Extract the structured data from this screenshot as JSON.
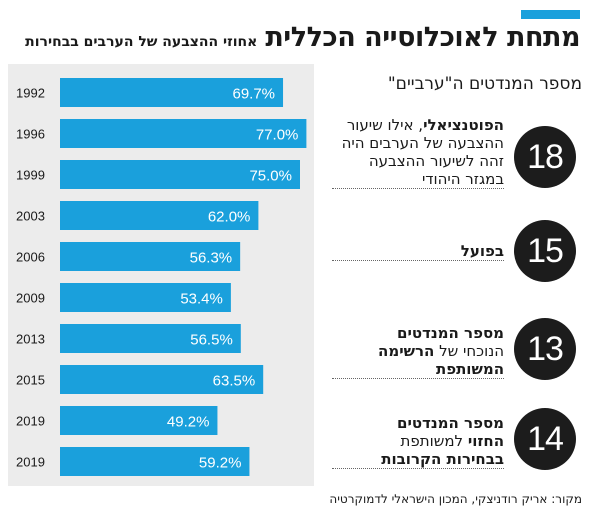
{
  "header": {
    "title": "מתחת לאוכלוסייה הכללית",
    "subtitle": "אחוזי ההצבעה של הערבים בבחירות",
    "accent_color": "#1aa0dc"
  },
  "chart_data": {
    "type": "bar",
    "orientation": "horizontal",
    "categories": [
      "1992",
      "1996",
      "1999",
      "2003",
      "2006",
      "2009",
      "2013",
      "2015",
      "2019",
      "2019"
    ],
    "values": [
      69.7,
      77.0,
      75.0,
      62.0,
      56.3,
      53.4,
      56.5,
      63.5,
      49.2,
      59.2
    ],
    "value_labels": [
      "69.7%",
      "77.0%",
      "75.0%",
      "62.0%",
      "56.3%",
      "53.4%",
      "56.5%",
      "63.5%",
      "49.2%",
      "59.2%"
    ],
    "title": "אחוזי ההצבעה של הערבים בבחירות",
    "xlim": [
      0,
      100
    ],
    "bar_color": "#1aa0dc",
    "background_color": "#ececec",
    "grid": false,
    "legend": "none"
  },
  "seats": {
    "heading": "מספר המנדטים ה\"ערביים\"",
    "items": [
      {
        "number": "18",
        "bold": "הפוטנציאלי",
        "rest": ", אילו שיעור ההצבעה של הערבים היה זהה לשיעור ההצבעה במגזר היהודי"
      },
      {
        "number": "15",
        "bold": "בפועל",
        "rest": ""
      },
      {
        "number": "13",
        "line1": "מספר המנדטים",
        "line2_plain": "הנוכחי של ",
        "line2_bold": "הרשימה המשותפת"
      },
      {
        "number": "14",
        "line1": "מספר המנדטים",
        "line2_bold": "החזוי",
        "line2_plain": " למשותפת",
        "line3_bold": "בבחירות הקרובות"
      }
    ]
  },
  "source": "מקור: אריק רודניצקי, המכון הישראלי לדמוקרטיה"
}
